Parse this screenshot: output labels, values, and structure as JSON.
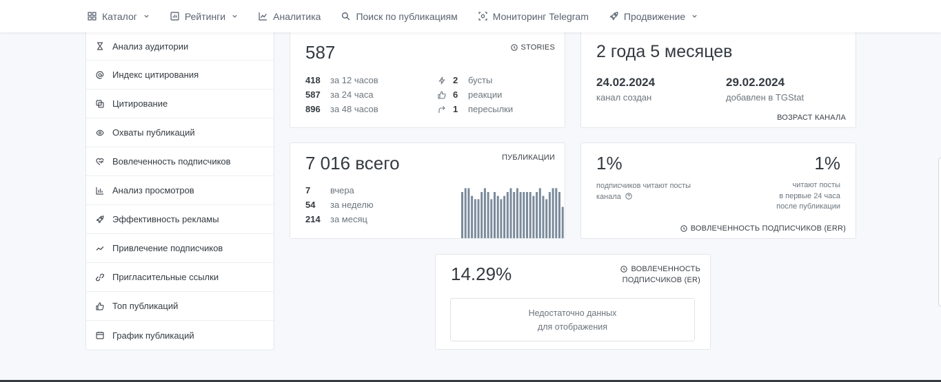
{
  "nav": {
    "items": [
      {
        "label": "Каталог",
        "icon": "grid-icon",
        "dropdown": true
      },
      {
        "label": "Рейтинги",
        "icon": "rating-icon",
        "dropdown": true
      },
      {
        "label": "Аналитика",
        "icon": "chart-line-icon",
        "dropdown": false
      },
      {
        "label": "Поиск по публикациям",
        "icon": "search-icon",
        "dropdown": false
      },
      {
        "label": "Мониторинг Telegram",
        "icon": "monitor-icon",
        "dropdown": false
      },
      {
        "label": "Продвижение",
        "icon": "rocket-icon",
        "dropdown": true
      }
    ]
  },
  "sidebar": {
    "items": [
      {
        "label": "Анализ аудитории",
        "icon": "hourglass-icon"
      },
      {
        "label": "Индекс цитирования",
        "icon": "at-icon"
      },
      {
        "label": "Цитирование",
        "icon": "copy-icon"
      },
      {
        "label": "Охваты публикаций",
        "icon": "eye-icon"
      },
      {
        "label": "Вовлеченность подписчиков",
        "icon": "engagement-icon"
      },
      {
        "label": "Анализ просмотров",
        "icon": "bar-chart-icon"
      },
      {
        "label": "Эффективность рекламы",
        "icon": "rocket-icon"
      },
      {
        "label": "Привлечение подписчиков",
        "icon": "trend-icon"
      },
      {
        "label": "Пригласительные ссылки",
        "icon": "link-icon"
      },
      {
        "label": "Топ публикаций",
        "icon": "thumbs-up-icon"
      },
      {
        "label": "График публикаций",
        "icon": "calendar-icon"
      }
    ]
  },
  "stories": {
    "value": "587",
    "caption": "STORIES",
    "rows": [
      {
        "n": "418",
        "t": "за 12 часов"
      },
      {
        "n": "587",
        "t": "за 24 часа"
      },
      {
        "n": "896",
        "t": "за 48 часов"
      }
    ],
    "right_rows": [
      {
        "icon": "bolt-icon",
        "n": "2",
        "t": "бусты"
      },
      {
        "icon": "thumbs-up-icon",
        "n": "6",
        "t": "реакции"
      },
      {
        "icon": "share-icon",
        "n": "1",
        "t": "пересылки"
      }
    ]
  },
  "age": {
    "value": "2 года 5 месяцев",
    "created_date": "24.02.2024",
    "created_label": "канал создан",
    "added_date": "29.02.2024",
    "added_label": "добавлен в TGStat",
    "caption": "ВОЗРАСТ КАНАЛА"
  },
  "publications": {
    "value": "7 016 всего",
    "caption": "ПУБЛИКАЦИИ",
    "rows": [
      {
        "n": "7",
        "t": "вчера"
      },
      {
        "n": "54",
        "t": "за неделю"
      },
      {
        "n": "214",
        "t": "за месяц"
      }
    ],
    "bars": [
      0.85,
      0.92,
      0.92,
      0.78,
      0.72,
      0.72,
      0.85,
      0.92,
      0.85,
      0.72,
      0.85,
      0.78,
      0.72,
      0.78,
      0.85,
      0.92,
      0.85,
      0.92,
      0.85,
      0.85,
      0.85,
      0.85,
      0.78,
      0.85,
      0.92,
      0.78,
      0.72,
      0.85,
      0.92,
      0.92,
      0.85,
      0.58
    ],
    "bar_color": "#7a8a9b"
  },
  "err": {
    "left_value": "1%",
    "left_label": "подписчиков читают посты канала",
    "right_value": "1%",
    "right_label_1": "читают посты",
    "right_label_2": "в первые 24 часа",
    "right_label_3": "после публикации",
    "caption": "ВОВЛЕЧЕННОСТЬ ПОДПИСЧИКОВ (ERR)"
  },
  "er": {
    "value": "14.29%",
    "caption_1": "ВОВЛЕЧЕННОСТЬ",
    "caption_2": "ПОДПИСЧИКОВ (ER)",
    "empty_1": "Недостаточно данных",
    "empty_2": "для отображения"
  }
}
